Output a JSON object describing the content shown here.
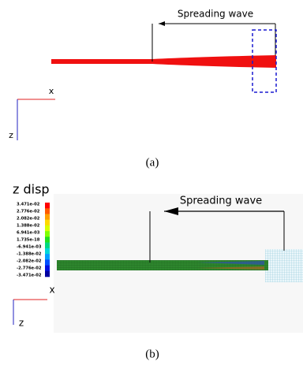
{
  "panel_a": {
    "annotation": "Spreading wave",
    "axis_x": "x",
    "axis_z": "z",
    "caption": "(a)"
  },
  "panel_b": {
    "colorbar_title": "z disp",
    "colorbar_labels": [
      "3.471e-02",
      "2.776e-02",
      "2.082e-02",
      "1.388e-02",
      "6.941e-03",
      "1.735e-18",
      "-6.941e-03",
      "-1.388e-02",
      "-2.082e-02",
      "-2.776e-02",
      "-3.471e-02"
    ],
    "annotation": "Spreading wave",
    "axis_x": "x",
    "axis_z": "z",
    "caption": "(b)"
  }
}
